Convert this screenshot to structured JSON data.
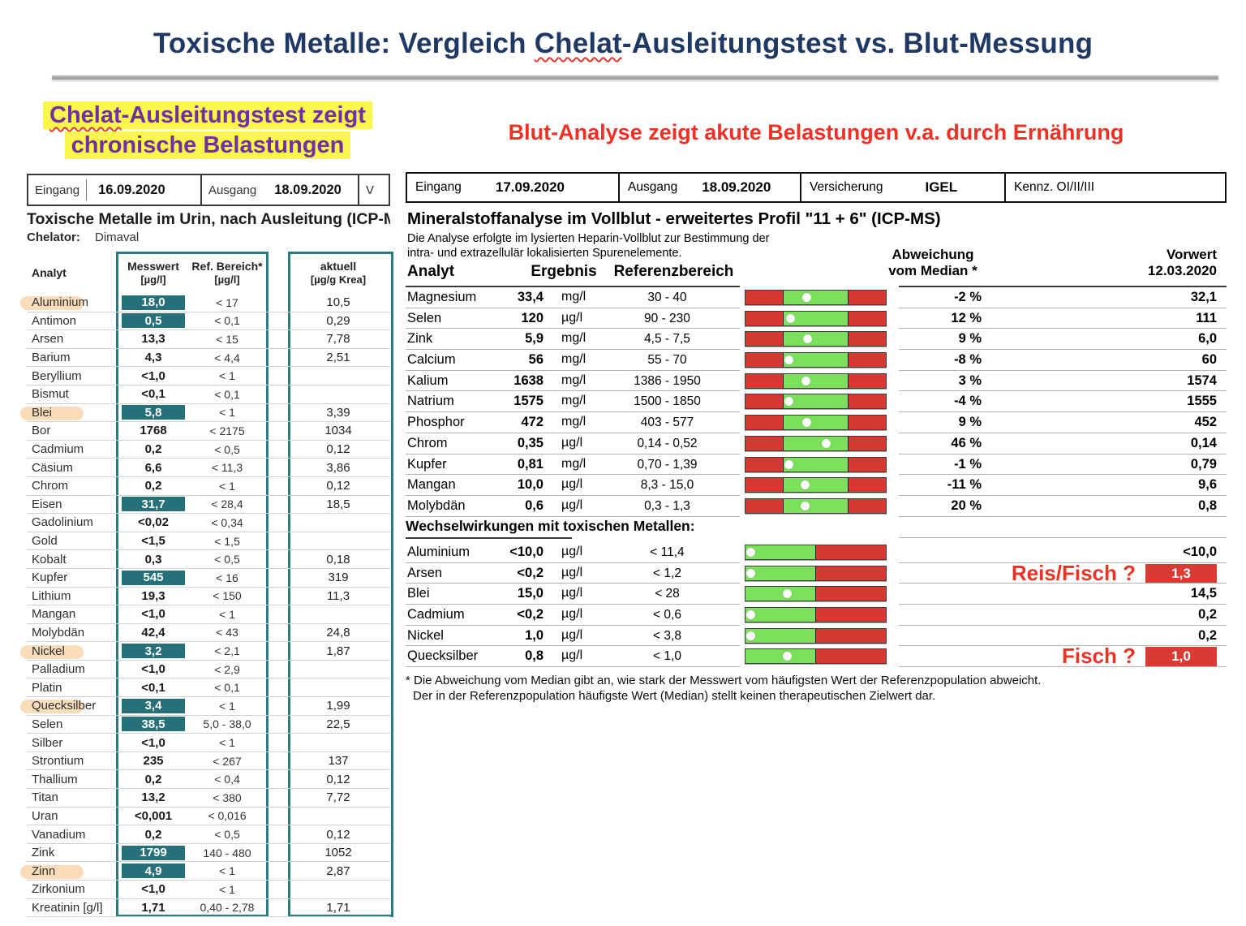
{
  "slide": {
    "title": {
      "pre": "Toxische Metalle: Vergleich ",
      "wavy": "Chelat",
      "post": "-Ausleitungstest vs. Blut-Messung"
    }
  },
  "left": {
    "headline": {
      "wavy": "Chelat",
      "line1_rest": "-Ausleitungstest zeigt",
      "line2": "chronische Belastungen"
    },
    "meta": {
      "eingang_label": "Eingang",
      "eingang_value": "16.09.2020",
      "ausgang_label": "Ausgang",
      "ausgang_value": "18.09.2020",
      "clipped": "V"
    },
    "report_title": "Toxische Metalle im Urin, nach Ausleitung (ICP-M",
    "chelator_label": "Chelator:",
    "chelator_value": "Dimaval",
    "header": {
      "analyt": "Analyt",
      "messwert": "Messwert",
      "messwert_unit": "[µg/l]",
      "ref": "Ref. Bereich*",
      "ref_unit": "[µg/l]",
      "aktuell": "aktuell",
      "aktuell_unit": "[µg/g Krea]"
    },
    "rows": [
      {
        "analyt": "Aluminium",
        "messwert": "18,0",
        "hl": true,
        "ref": "< 17",
        "aktuell": "10,5",
        "mark": true
      },
      {
        "analyt": "Antimon",
        "messwert": "0,5",
        "hl": true,
        "ref": "< 0,1",
        "aktuell": "0,29",
        "mark": false
      },
      {
        "analyt": "Arsen",
        "messwert": "13,3",
        "hl": false,
        "ref": "< 15",
        "aktuell": "7,78",
        "mark": false
      },
      {
        "analyt": "Barium",
        "messwert": "4,3",
        "hl": false,
        "ref": "< 4,4",
        "aktuell": "2,51",
        "mark": false
      },
      {
        "analyt": "Beryllium",
        "messwert": "<1,0",
        "hl": false,
        "ref": "< 1",
        "aktuell": "",
        "mark": false
      },
      {
        "analyt": "Bismut",
        "messwert": "<0,1",
        "hl": false,
        "ref": "< 0,1",
        "aktuell": "",
        "mark": false
      },
      {
        "analyt": "Blei",
        "messwert": "5,8",
        "hl": true,
        "ref": "< 1",
        "aktuell": "3,39",
        "mark": true
      },
      {
        "analyt": "Bor",
        "messwert": "1768",
        "hl": false,
        "ref": "< 2175",
        "aktuell": "1034",
        "mark": false
      },
      {
        "analyt": "Cadmium",
        "messwert": "0,2",
        "hl": false,
        "ref": "< 0,5",
        "aktuell": "0,12",
        "mark": false
      },
      {
        "analyt": "Cäsium",
        "messwert": "6,6",
        "hl": false,
        "ref": "< 11,3",
        "aktuell": "3,86",
        "mark": false
      },
      {
        "analyt": "Chrom",
        "messwert": "0,2",
        "hl": false,
        "ref": "< 1",
        "aktuell": "0,12",
        "mark": false
      },
      {
        "analyt": "Eisen",
        "messwert": "31,7",
        "hl": true,
        "ref": "< 28,4",
        "aktuell": "18,5",
        "mark": false
      },
      {
        "analyt": "Gadolinium",
        "messwert": "<0,02",
        "hl": false,
        "ref": "< 0,34",
        "aktuell": "",
        "mark": false
      },
      {
        "analyt": "Gold",
        "messwert": "<1,5",
        "hl": false,
        "ref": "< 1,5",
        "aktuell": "",
        "mark": false
      },
      {
        "analyt": "Kobalt",
        "messwert": "0,3",
        "hl": false,
        "ref": "< 0,5",
        "aktuell": "0,18",
        "mark": false
      },
      {
        "analyt": "Kupfer",
        "messwert": "545",
        "hl": true,
        "ref": "< 16",
        "aktuell": "319",
        "mark": false
      },
      {
        "analyt": "Lithium",
        "messwert": "19,3",
        "hl": false,
        "ref": "< 150",
        "aktuell": "11,3",
        "mark": false
      },
      {
        "analyt": "Mangan",
        "messwert": "<1,0",
        "hl": false,
        "ref": "< 1",
        "aktuell": "",
        "mark": false
      },
      {
        "analyt": "Molybdän",
        "messwert": "42,4",
        "hl": false,
        "ref": "< 43",
        "aktuell": "24,8",
        "mark": false
      },
      {
        "analyt": "Nickel",
        "messwert": "3,2",
        "hl": true,
        "ref": "< 2,1",
        "aktuell": "1,87",
        "mark": true
      },
      {
        "analyt": "Palladium",
        "messwert": "<1,0",
        "hl": false,
        "ref": "< 2,9",
        "aktuell": "",
        "mark": false
      },
      {
        "analyt": "Platin",
        "messwert": "<0,1",
        "hl": false,
        "ref": "< 0,1",
        "aktuell": "",
        "mark": false
      },
      {
        "analyt": "Quecksilber",
        "messwert": "3,4",
        "hl": true,
        "ref": "< 1",
        "aktuell": "1,99",
        "mark": true
      },
      {
        "analyt": "Selen",
        "messwert": "38,5",
        "hl": true,
        "ref": "5,0 - 38,0",
        "aktuell": "22,5",
        "mark": false
      },
      {
        "analyt": "Silber",
        "messwert": "<1,0",
        "hl": false,
        "ref": "< 1",
        "aktuell": "",
        "mark": false
      },
      {
        "analyt": "Strontium",
        "messwert": "235",
        "hl": false,
        "ref": "< 267",
        "aktuell": "137",
        "mark": false
      },
      {
        "analyt": "Thallium",
        "messwert": "0,2",
        "hl": false,
        "ref": "< 0,4",
        "aktuell": "0,12",
        "mark": false
      },
      {
        "analyt": "Titan",
        "messwert": "13,2",
        "hl": false,
        "ref": "< 380",
        "aktuell": "7,72",
        "mark": false
      },
      {
        "analyt": "Uran",
        "messwert": "<0,001",
        "hl": false,
        "ref": "< 0,016",
        "aktuell": "",
        "mark": false
      },
      {
        "analyt": "Vanadium",
        "messwert": "0,2",
        "hl": false,
        "ref": "< 0,5",
        "aktuell": "0,12",
        "mark": false
      },
      {
        "analyt": "Zink",
        "messwert": "1799",
        "hl": true,
        "ref": "140 - 480",
        "aktuell": "1052",
        "mark": false
      },
      {
        "analyt": "Zinn",
        "messwert": "4,9",
        "hl": true,
        "ref": "< 1",
        "aktuell": "2,87",
        "mark": true
      },
      {
        "analyt": "Zirkonium",
        "messwert": "<1,0",
        "hl": false,
        "ref": "< 1",
        "aktuell": "",
        "mark": false
      },
      {
        "analyt": "Kreatinin [g/l]",
        "messwert": "1,71",
        "hl": false,
        "ref": "0,40 - 2,78",
        "aktuell": "1,71",
        "mark": false
      }
    ]
  },
  "right": {
    "headline": "Blut-Analyse zeigt akute Belastungen v.a. durch Ernährung",
    "meta": [
      {
        "label": "Eingang",
        "value": "17.09.2020"
      },
      {
        "label": "Ausgang",
        "value": "18.09.2020"
      },
      {
        "label": "Versicherung",
        "value": "IGEL"
      },
      {
        "label": "Kennz. OI/II/III",
        "value": ""
      }
    ],
    "report_title": "Mineralstoffanalyse im Vollblut - erweitertes Profil \"11 + 6\" (ICP-MS)",
    "report_sub1": "Die Analyse erfolgte im lysierten Heparin-Vollblut zur Bestimmung der",
    "report_sub2": "intra- und extrazellulär lokalisierten Spurenelemente.",
    "header": {
      "analyt": "Analyt",
      "ergebnis": "Ergebnis",
      "ref": "Referenzbereich",
      "abw1": "Abweichung",
      "abw2": "vom Median *",
      "vorwert1": "Vorwert",
      "vorwert2": "12.03.2020"
    },
    "mineral_rows": [
      {
        "analyt": "Magnesium",
        "ergebnis": "33,4",
        "einheit": "mg/l",
        "ref": "30 - 40",
        "dot": 0.36,
        "abw": "-2 %",
        "vorwert": "32,1"
      },
      {
        "analyt": "Selen",
        "ergebnis": "120",
        "einheit": "µg/l",
        "ref": "90 - 230",
        "dot": 0.12,
        "abw": "12 %",
        "vorwert": "111"
      },
      {
        "analyt": "Zink",
        "ergebnis": "5,9",
        "einheit": "mg/l",
        "ref": "4,5 - 7,5",
        "dot": 0.38,
        "abw": "9 %",
        "vorwert": "6,0"
      },
      {
        "analyt": "Calcium",
        "ergebnis": "56",
        "einheit": "mg/l",
        "ref": "55 - 70",
        "dot": 0.1,
        "abw": "-8 %",
        "vorwert": "60"
      },
      {
        "analyt": "Kalium",
        "ergebnis": "1638",
        "einheit": "mg/l",
        "ref": "1386 - 1950",
        "dot": 0.35,
        "abw": "3 %",
        "vorwert": "1574"
      },
      {
        "analyt": "Natrium",
        "ergebnis": "1575",
        "einheit": "mg/l",
        "ref": "1500 - 1850",
        "dot": 0.1,
        "abw": "-4 %",
        "vorwert": "1555"
      },
      {
        "analyt": "Phosphor",
        "ergebnis": "472",
        "einheit": "mg/l",
        "ref": "403 - 577",
        "dot": 0.36,
        "abw": "9 %",
        "vorwert": "452"
      },
      {
        "analyt": "Chrom",
        "ergebnis": "0,35",
        "einheit": "µg/l",
        "ref": "0,14 - 0,52",
        "dot": 0.66,
        "abw": "46 %",
        "vorwert": "0,14"
      },
      {
        "analyt": "Kupfer",
        "ergebnis": "0,81",
        "einheit": "mg/l",
        "ref": "0,70 - 1,39",
        "dot": 0.1,
        "abw": "-1 %",
        "vorwert": "0,79"
      },
      {
        "analyt": "Mangan",
        "ergebnis": "10,0",
        "einheit": "µg/l",
        "ref": "8,3 - 15,0",
        "dot": 0.34,
        "abw": "-11 %",
        "vorwert": "9,6"
      },
      {
        "analyt": "Molybdän",
        "ergebnis": "0,6",
        "einheit": "µg/l",
        "ref": "0,3 - 1,3",
        "dot": 0.34,
        "abw": "20 %",
        "vorwert": "0,8"
      }
    ],
    "section2_title": "Wechselwirkungen mit toxischen Metallen:",
    "toxic_rows": [
      {
        "analyt": "Aluminium",
        "ergebnis": "<10,0",
        "einheit": "µg/l",
        "ref": "< 11,4",
        "dot": 0.04,
        "note": "",
        "vorwert": "<10,0",
        "vorwert_red": false
      },
      {
        "analyt": "Arsen",
        "ergebnis": "<0,2",
        "einheit": "µg/l",
        "ref": "< 1,2",
        "dot": 0.04,
        "note": "Reis/Fisch ?",
        "vorwert": "1,3",
        "vorwert_red": true
      },
      {
        "analyt": "Blei",
        "ergebnis": "15,0",
        "einheit": "µg/l",
        "ref": "< 28",
        "dot": 0.3,
        "note": "",
        "vorwert": "14,5",
        "vorwert_red": false
      },
      {
        "analyt": "Cadmium",
        "ergebnis": "<0,2",
        "einheit": "µg/l",
        "ref": "< 0,6",
        "dot": 0.04,
        "note": "",
        "vorwert": "0,2",
        "vorwert_red": false
      },
      {
        "analyt": "Nickel",
        "ergebnis": "1,0",
        "einheit": "µg/l",
        "ref": "< 3,8",
        "dot": 0.04,
        "note": "",
        "vorwert": "0,2",
        "vorwert_red": false
      },
      {
        "analyt": "Quecksilber",
        "ergebnis": "0,8",
        "einheit": "µg/l",
        "ref": "< 1,0",
        "dot": 0.3,
        "note": "Fisch ?",
        "vorwert": "1,0",
        "vorwert_red": true
      }
    ],
    "footnote1": "* Die Abweichung vom Median gibt an, wie stark der Messwert vom häufigsten Wert der Referenzpopulation abweicht.",
    "footnote2": "Der in der Referenzpopulation häufigste Wert (Median) stellt keinen therapeutischen Zielwert dar."
  },
  "colors": {
    "title_navy": "#1f3864",
    "headline_red": "#ee3124",
    "highlight_yellow": "#fbf64e",
    "headline_purple": "#7030a0",
    "table_teal": "#26707a",
    "bar_red": "#d43a32",
    "bar_green": "#7ce05d",
    "alert_box_red": "#d93a32"
  }
}
